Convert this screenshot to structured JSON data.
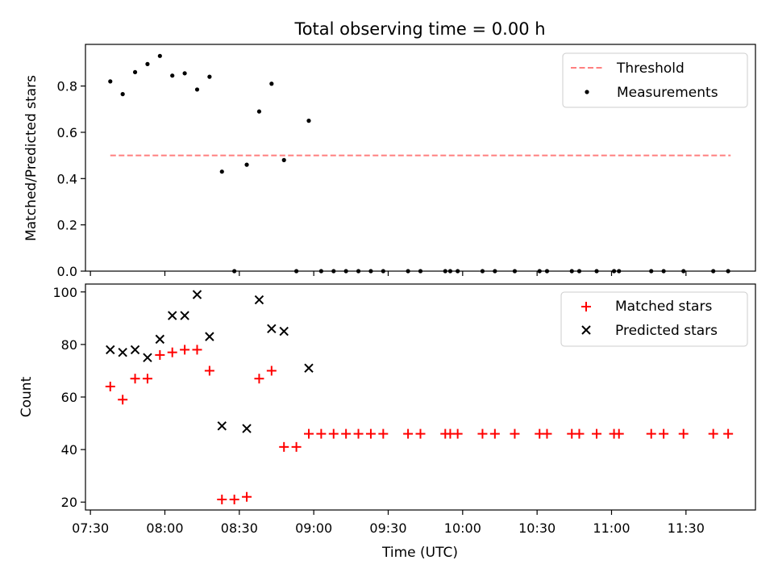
{
  "chart_data": [
    {
      "type": "scatter",
      "title": "Total observing time = 0.00 h",
      "xlabel": "",
      "ylabel": "Matched/Predicted stars",
      "ylim": [
        0,
        0.98
      ],
      "xlim": [
        "07:28",
        "11:58"
      ],
      "y_ticks": [
        "0.0",
        "0.2",
        "0.4",
        "0.6",
        "0.8"
      ],
      "legend_position": "top-right",
      "series": [
        {
          "name": "Threshold",
          "kind": "dashed-line",
          "color": "#ff7f7f",
          "x": [
            "07:38",
            "11:48"
          ],
          "values": [
            0.5,
            0.5
          ]
        },
        {
          "name": "Measurements",
          "kind": "dot",
          "color": "#000000",
          "x": [
            "07:38",
            "07:43",
            "07:48",
            "07:53",
            "07:58",
            "08:03",
            "08:08",
            "08:13",
            "08:18",
            "08:23",
            "08:28",
            "08:33",
            "08:38",
            "08:43",
            "08:48",
            "08:53",
            "08:58",
            "09:03",
            "09:08",
            "09:13",
            "09:18",
            "09:23",
            "09:28",
            "09:38",
            "09:43",
            "09:53",
            "09:55",
            "09:58",
            "10:08",
            "10:13",
            "10:21",
            "10:31",
            "10:34",
            "10:44",
            "10:47",
            "10:54",
            "11:01",
            "11:03",
            "11:16",
            "11:21",
            "11:29",
            "11:41",
            "11:47"
          ],
          "values": [
            0.82,
            0.765,
            0.86,
            0.895,
            0.93,
            0.845,
            0.855,
            0.785,
            0.84,
            0.43,
            0.0,
            0.46,
            0.69,
            0.81,
            0.48,
            0.0,
            0.65,
            0.0,
            0.0,
            0.0,
            0.0,
            0.0,
            0.0,
            0.0,
            0.0,
            0.0,
            0.0,
            0.0,
            0.0,
            0.0,
            0.0,
            0.0,
            0.0,
            0.0,
            0.0,
            0.0,
            0.0,
            0.0,
            0.0,
            0.0,
            0.0,
            0.0,
            0.0
          ]
        }
      ]
    },
    {
      "type": "scatter",
      "title": "",
      "xlabel": "Time (UTC)",
      "ylabel": "Count",
      "ylim": [
        17,
        103
      ],
      "xlim": [
        "07:28",
        "11:58"
      ],
      "x_ticks": [
        "07:30",
        "08:00",
        "08:30",
        "09:00",
        "09:30",
        "10:00",
        "10:30",
        "11:00",
        "11:30"
      ],
      "y_ticks": [
        "20",
        "40",
        "60",
        "80",
        "100"
      ],
      "legend_position": "top-right",
      "series": [
        {
          "name": "Matched stars",
          "marker": "plus",
          "color": "#ff0000",
          "x": [
            "07:38",
            "07:43",
            "07:48",
            "07:53",
            "07:58",
            "08:03",
            "08:08",
            "08:13",
            "08:18",
            "08:23",
            "08:28",
            "08:33",
            "08:38",
            "08:43",
            "08:48",
            "08:53",
            "08:58",
            "09:03",
            "09:08",
            "09:13",
            "09:18",
            "09:23",
            "09:28",
            "09:38",
            "09:43",
            "09:53",
            "09:55",
            "09:58",
            "10:08",
            "10:13",
            "10:21",
            "10:31",
            "10:34",
            "10:44",
            "10:47",
            "10:54",
            "11:01",
            "11:03",
            "11:16",
            "11:21",
            "11:29",
            "11:41",
            "11:47"
          ],
          "values": [
            64,
            59,
            67,
            67,
            76,
            77,
            78,
            78,
            70,
            21,
            21,
            22,
            67,
            70,
            41,
            41,
            46,
            46,
            46,
            46,
            46,
            46,
            46,
            46,
            46,
            46,
            46,
            46,
            46,
            46,
            46,
            46,
            46,
            46,
            46,
            46,
            46,
            46,
            46,
            46,
            46,
            46,
            46
          ]
        },
        {
          "name": "Predicted stars",
          "marker": "x",
          "color": "#000000",
          "x": [
            "07:38",
            "07:43",
            "07:48",
            "07:53",
            "07:58",
            "08:03",
            "08:08",
            "08:13",
            "08:18",
            "08:23",
            "08:33",
            "08:38",
            "08:43",
            "08:48",
            "08:58"
          ],
          "values": [
            78,
            77,
            78,
            75,
            82,
            91,
            91,
            99,
            83,
            49,
            48,
            97,
            86,
            85,
            71
          ]
        }
      ]
    }
  ]
}
